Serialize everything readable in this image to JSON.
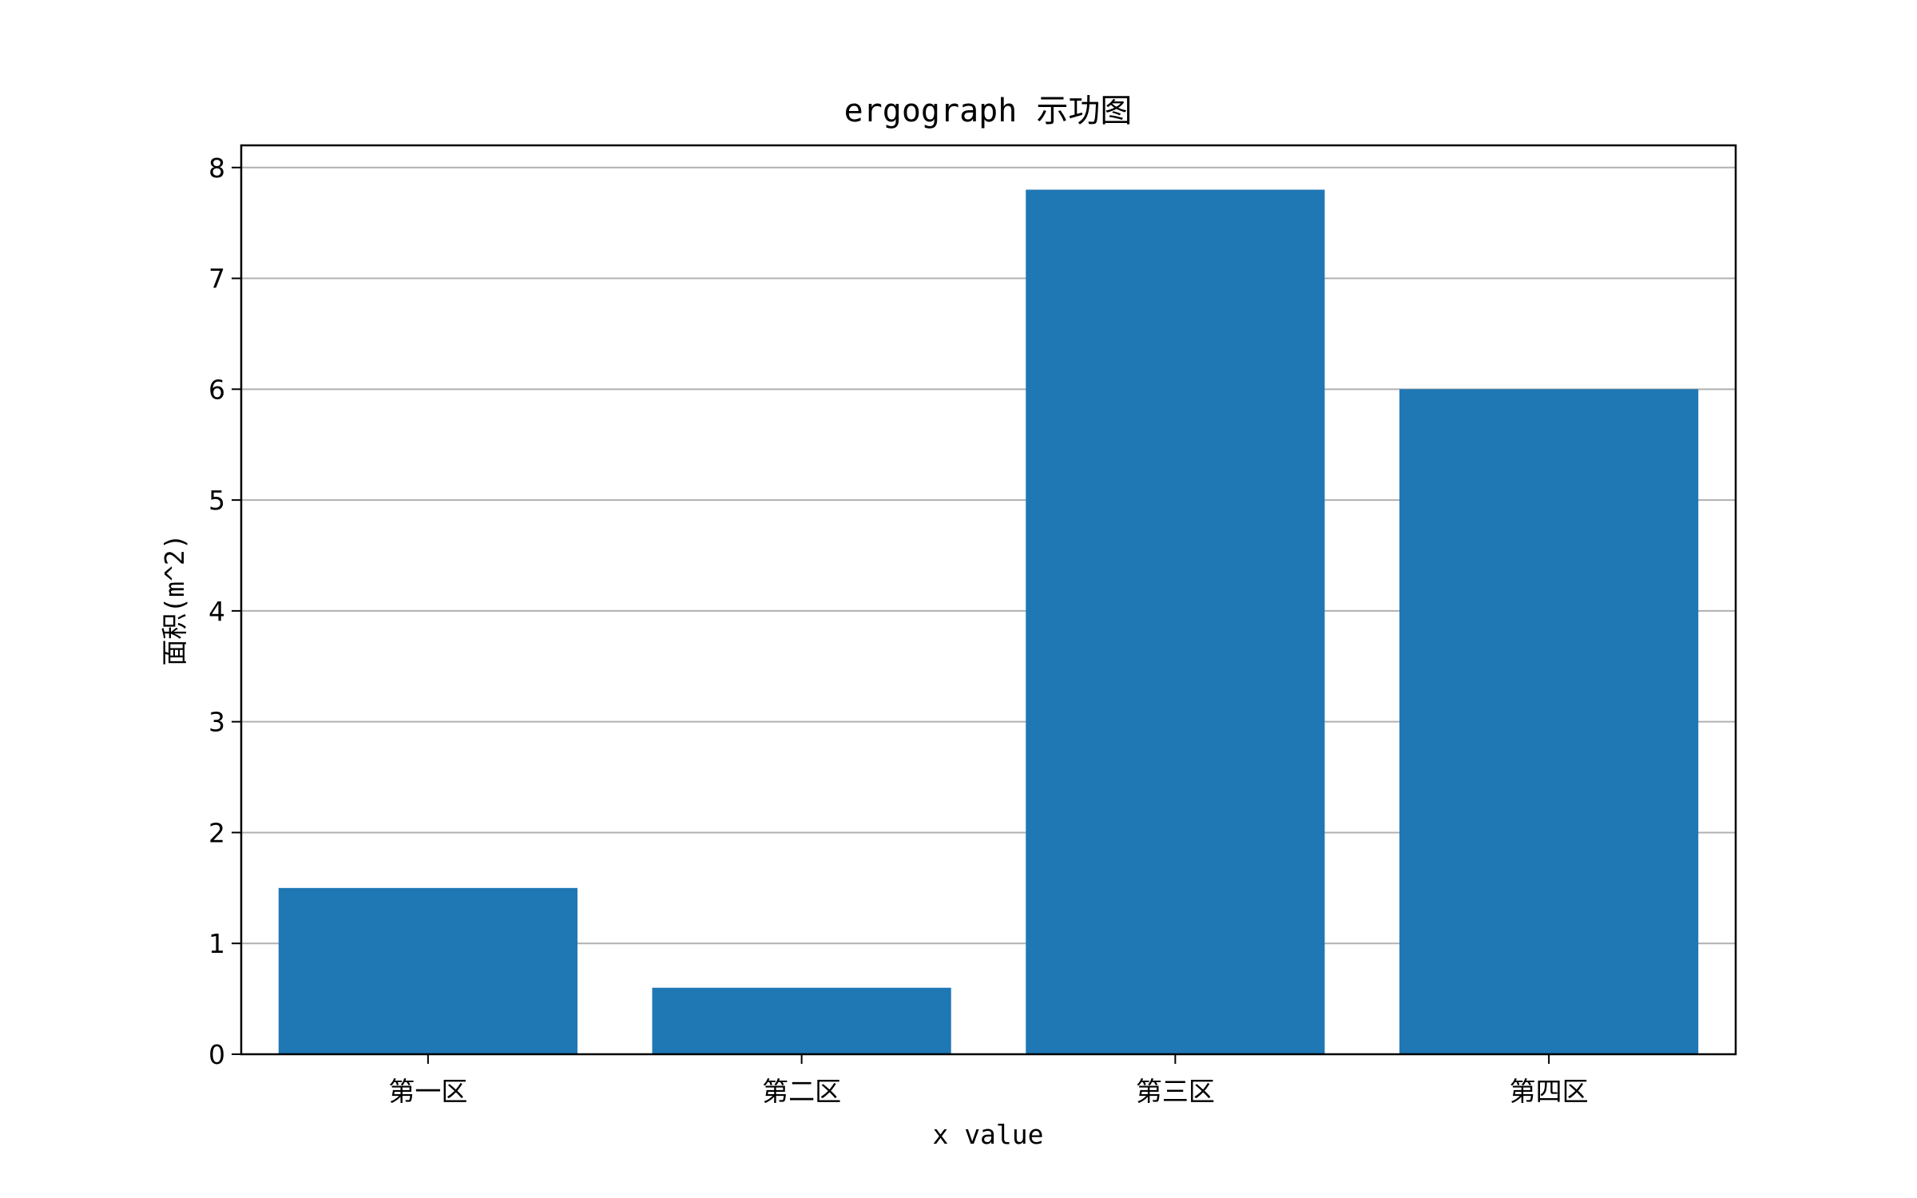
{
  "chart_data": {
    "type": "bar",
    "title": "ergograph 示功图",
    "xlabel": "x value",
    "ylabel": "面积(m^2)",
    "categories": [
      "第一区",
      "第二区",
      "第三区",
      "第四区"
    ],
    "values": [
      1.5,
      0.6,
      7.8,
      6.0
    ],
    "ylim": [
      0,
      8.2
    ],
    "yticks": [
      0,
      1,
      2,
      3,
      4,
      5,
      6,
      7,
      8
    ],
    "grid": "y",
    "bar_color": "#1f77b4",
    "grid_color": "#b0b0b0"
  }
}
